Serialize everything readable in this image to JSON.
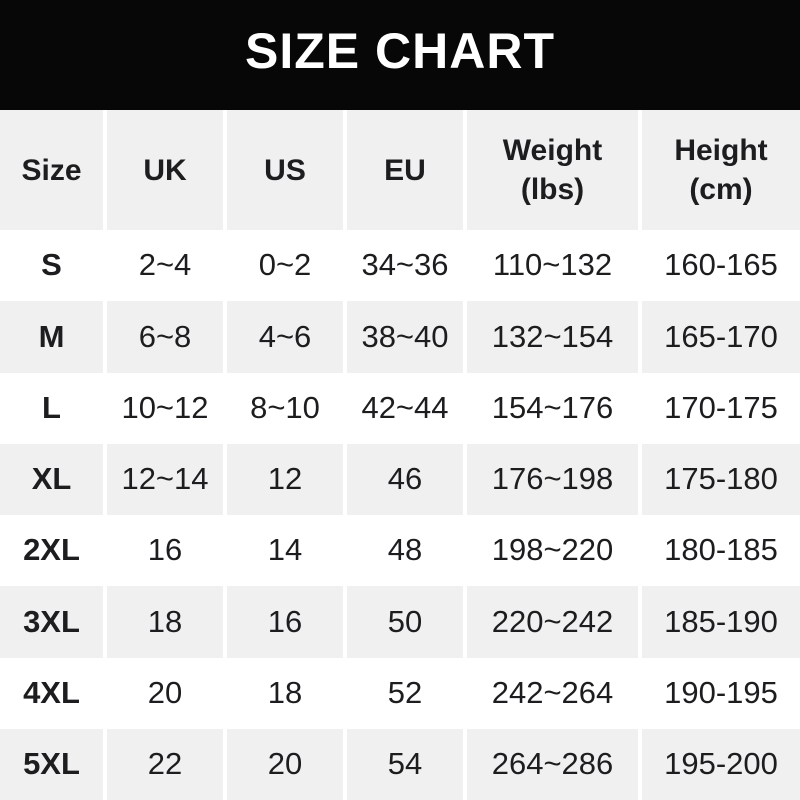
{
  "title_bar": {
    "title": "SIZE CHART"
  },
  "colors": {
    "title_bar_bg": "#070707",
    "title_text": "#ffffff",
    "row_alt_bg": "#f0f0f0",
    "row_bg": "#ffffff",
    "text": "#1d1d1f"
  },
  "chart_data": {
    "type": "table",
    "title": "SIZE CHART",
    "columns": [
      "Size",
      "UK",
      "US",
      "EU",
      "Weight\n(lbs)",
      "Height\n(cm)"
    ],
    "rows": [
      {
        "size": "S",
        "uk": "2~4",
        "us": "0~2",
        "eu": "34~36",
        "weight": "110~132",
        "height": "160-165"
      },
      {
        "size": "M",
        "uk": "6~8",
        "us": "4~6",
        "eu": "38~40",
        "weight": "132~154",
        "height": "165-170"
      },
      {
        "size": "L",
        "uk": "10~12",
        "us": "8~10",
        "eu": "42~44",
        "weight": "154~176",
        "height": "170-175"
      },
      {
        "size": "XL",
        "uk": "12~14",
        "us": "12",
        "eu": "46",
        "weight": "176~198",
        "height": "175-180"
      },
      {
        "size": "2XL",
        "uk": "16",
        "us": "14",
        "eu": "48",
        "weight": "198~220",
        "height": "180-185"
      },
      {
        "size": "3XL",
        "uk": "18",
        "us": "16",
        "eu": "50",
        "weight": "220~242",
        "height": "185-190"
      },
      {
        "size": "4XL",
        "uk": "20",
        "us": "18",
        "eu": "52",
        "weight": "242~264",
        "height": "190-195"
      },
      {
        "size": "5XL",
        "uk": "22",
        "us": "20",
        "eu": "54",
        "weight": "264~286",
        "height": "195-200"
      }
    ]
  }
}
